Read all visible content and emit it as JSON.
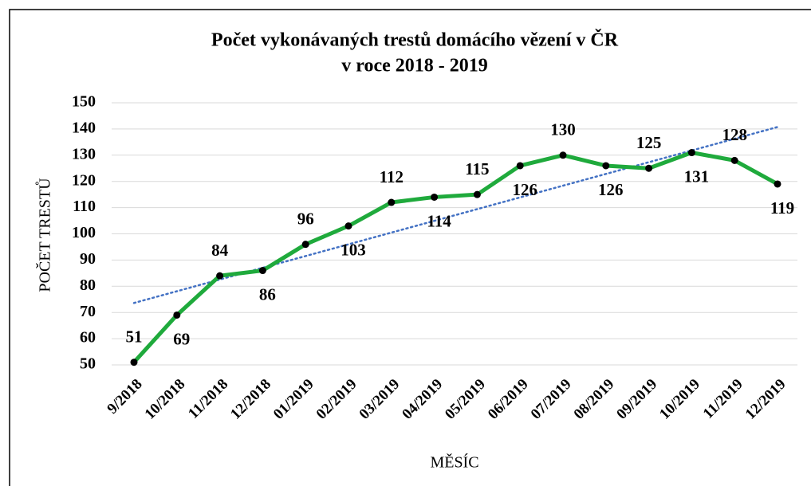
{
  "chart_data": {
    "type": "line",
    "title": [
      "Počet vykonávaných trestů domácího vězení v ČR",
      "v roce 2018 - 2019"
    ],
    "x_label": "MĚSÍC",
    "y_label": "POČET TRESTŮ",
    "categories": [
      "9/2018",
      "10/2018",
      "11/2018",
      "12/2018",
      "01/2019",
      "02/2019",
      "03/2019",
      "04/2019",
      "05/2019",
      "06/2019",
      "07/2019",
      "08/2019",
      "09/2019",
      "10/2019",
      "11/2019",
      "12/2019"
    ],
    "values": [
      51,
      69,
      84,
      86,
      96,
      103,
      112,
      114,
      115,
      126,
      130,
      126,
      125,
      131,
      128,
      119
    ],
    "color": "#1faa3c",
    "trendline": true,
    "trendline_color": "#4472c4",
    "ylim": [
      50,
      150
    ],
    "yticks": [
      50,
      60,
      70,
      80,
      90,
      100,
      110,
      120,
      130,
      140,
      150
    ],
    "grid": true
  }
}
